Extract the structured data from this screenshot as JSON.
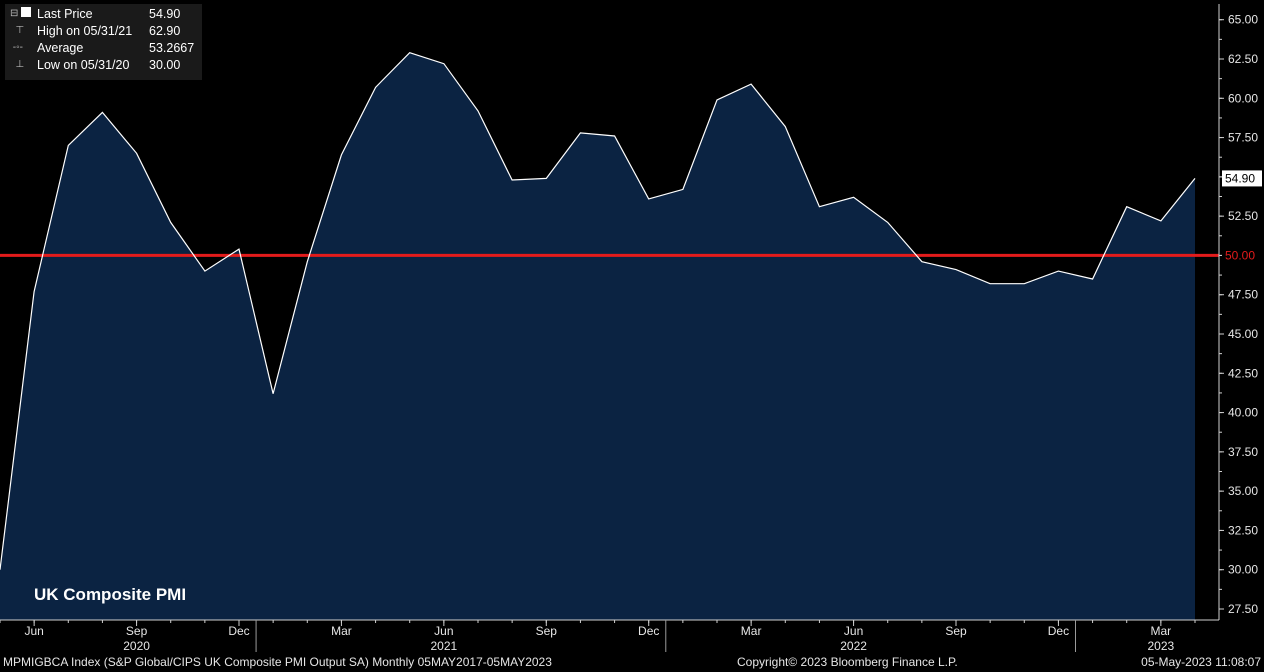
{
  "chart_data": {
    "type": "area",
    "title": "UK Composite PMI",
    "x": [
      "2020-05",
      "2020-06",
      "2020-07",
      "2020-08",
      "2020-09",
      "2020-10",
      "2020-11",
      "2020-12",
      "2021-01",
      "2021-02",
      "2021-03",
      "2021-04",
      "2021-05",
      "2021-06",
      "2021-07",
      "2021-08",
      "2021-09",
      "2021-10",
      "2021-11",
      "2021-12",
      "2022-01",
      "2022-02",
      "2022-03",
      "2022-04",
      "2022-05",
      "2022-06",
      "2022-07",
      "2022-08",
      "2022-09",
      "2022-10",
      "2022-11",
      "2022-12",
      "2023-01",
      "2023-02",
      "2023-03",
      "2023-04"
    ],
    "series": [
      {
        "values": [
          30.0,
          47.7,
          57.0,
          59.1,
          56.5,
          52.1,
          49.0,
          50.4,
          41.2,
          49.6,
          56.4,
          60.7,
          62.9,
          62.2,
          59.2,
          54.8,
          54.9,
          57.8,
          57.6,
          53.6,
          54.2,
          59.9,
          60.9,
          58.2,
          53.1,
          53.7,
          52.1,
          49.6,
          49.1,
          48.2,
          48.2,
          49.0,
          48.5,
          53.1,
          52.2,
          54.9
        ],
        "color": "#ffffff",
        "fill": "#0b2342"
      }
    ],
    "reference_line": {
      "value": 50.0,
      "label": "50.00",
      "color": "#e31b1b"
    },
    "last_value_label": "54.90",
    "ylim": [
      26.8,
      66.0
    ],
    "y_ticks": [
      "27.50",
      "30.00",
      "32.50",
      "35.00",
      "37.50",
      "40.00",
      "42.50",
      "45.00",
      "47.50",
      "50.00",
      "52.50",
      "55.00",
      "57.50",
      "60.00",
      "62.50",
      "65.00"
    ],
    "x_ticks": [
      {
        "label": "Jun",
        "at": "2020-06"
      },
      {
        "label": "Sep",
        "at": "2020-09"
      },
      {
        "label": "Dec",
        "at": "2020-12"
      },
      {
        "label": "Mar",
        "at": "2021-03"
      },
      {
        "label": "Jun",
        "at": "2021-06"
      },
      {
        "label": "Sep",
        "at": "2021-09"
      },
      {
        "label": "Dec",
        "at": "2021-12"
      },
      {
        "label": "Mar",
        "at": "2022-03"
      },
      {
        "label": "Jun",
        "at": "2022-06"
      },
      {
        "label": "Sep",
        "at": "2022-09"
      },
      {
        "label": "Dec",
        "at": "2022-12"
      },
      {
        "label": "Mar",
        "at": "2023-03"
      }
    ],
    "year_labels": [
      {
        "label": "2020",
        "at": "2020-09"
      },
      {
        "label": "2021",
        "at": "2021-06"
      },
      {
        "label": "2022",
        "at": "2022-06"
      },
      {
        "label": "2023",
        "at": "2023-03"
      }
    ],
    "grid": false,
    "legend_position": "top-left"
  },
  "legend": {
    "rows": [
      {
        "label": "Last Price",
        "value": "54.90"
      },
      {
        "label": "High on 05/31/21",
        "value": "62.90"
      },
      {
        "label": "Average",
        "value": "53.2667"
      },
      {
        "label": "Low on 05/31/20",
        "value": "30.00"
      }
    ]
  },
  "footer": {
    "left": "MPMIGBCA Index (S&P Global/CIPS UK Composite PMI Output SA)  Monthly 05MAY2017-05MAY2023",
    "center": "Copyright© 2023 Bloomberg Finance L.P.",
    "right": "05-May-2023 11:08:07"
  },
  "colors": {
    "background": "#000000",
    "area_fill": "#0b2342",
    "line": "#ffffff",
    "reference": "#e31b1b"
  }
}
